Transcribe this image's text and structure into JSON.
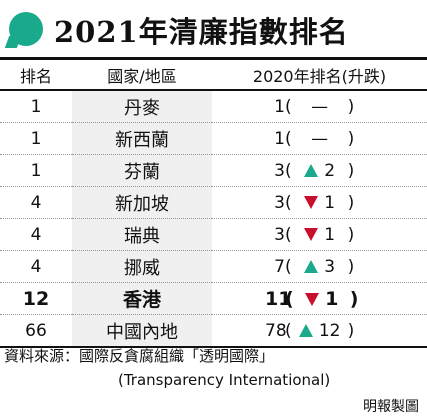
{
  "title": "2021年清廉指數排名",
  "headers": {
    "rank": "排名",
    "country": "國家/地區",
    "change": "2020年排名(升跌)"
  },
  "rows": [
    {
      "rank": "1",
      "country": "丹麥",
      "prev": "1",
      "dir": "none",
      "delta": "—"
    },
    {
      "rank": "1",
      "country": "新西蘭",
      "prev": "1",
      "dir": "none",
      "delta": "—"
    },
    {
      "rank": "1",
      "country": "芬蘭",
      "prev": "3",
      "dir": "up",
      "delta": "2"
    },
    {
      "rank": "4",
      "country": "新加坡",
      "prev": "3",
      "dir": "down",
      "delta": "1"
    },
    {
      "rank": "4",
      "country": "瑞典",
      "prev": "3",
      "dir": "down",
      "delta": "1"
    },
    {
      "rank": "4",
      "country": "挪威",
      "prev": "7",
      "dir": "up",
      "delta": "3"
    },
    {
      "rank": "12",
      "country": "香港",
      "prev": "11",
      "dir": "down",
      "delta": "1",
      "highlight": true
    },
    {
      "rank": "66",
      "country": "中國內地",
      "prev": "78",
      "dir": "up",
      "delta": "12"
    }
  ],
  "source_line1": "資料來源：國際反貪腐組織「透明國際」",
  "source_line2": "(Transparency International)",
  "credit": "明報製圖",
  "colors": {
    "up": "#1aa98a",
    "down": "#c8102e",
    "title_icon": "#1aa98a"
  }
}
